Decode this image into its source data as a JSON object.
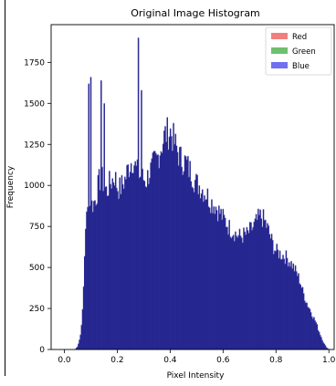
{
  "chart_data": {
    "type": "bar",
    "title": "Original Image Histogram",
    "xlabel": "Pixel Intensity",
    "ylabel": "Frequency",
    "xlim": [
      -0.05,
      1.02
    ],
    "ylim": [
      0,
      1980
    ],
    "x_ticks": [
      "0.0",
      "0.2",
      "0.4",
      "0.6",
      "0.8",
      "1.0"
    ],
    "x_tick_values": [
      0.0,
      0.2,
      0.4,
      0.6,
      0.8,
      1.0
    ],
    "y_ticks": [
      "0",
      "250",
      "500",
      "750",
      "1000",
      "1250",
      "1500",
      "1750"
    ],
    "y_tick_values": [
      0,
      250,
      500,
      750,
      1000,
      1250,
      1500,
      1750
    ],
    "bins": 256,
    "bin_range": [
      0.0,
      1.0
    ],
    "legend": {
      "position": "top-right",
      "entries": [
        {
          "label": "Red",
          "color": "#f08080"
        },
        {
          "label": "Green",
          "color": "#6fbf6f"
        },
        {
          "label": "Blue",
          "color": "#7070f0"
        }
      ]
    },
    "fill_color": "#262690",
    "outline_color": "#8080e0",
    "profile": [
      [
        0.0,
        0
      ],
      [
        0.01,
        0
      ],
      [
        0.02,
        0
      ],
      [
        0.03,
        0
      ],
      [
        0.04,
        0
      ],
      [
        0.05,
        20
      ],
      [
        0.06,
        80
      ],
      [
        0.07,
        260
      ],
      [
        0.075,
        520
      ],
      [
        0.08,
        760
      ],
      [
        0.09,
        870
      ],
      [
        0.1,
        880
      ],
      [
        0.11,
        890
      ],
      [
        0.12,
        930
      ],
      [
        0.13,
        1020
      ],
      [
        0.14,
        1050
      ],
      [
        0.15,
        1000
      ],
      [
        0.16,
        960
      ],
      [
        0.17,
        1010
      ],
      [
        0.18,
        1030
      ],
      [
        0.19,
        1060
      ],
      [
        0.2,
        990
      ],
      [
        0.21,
        980
      ],
      [
        0.22,
        1010
      ],
      [
        0.23,
        1040
      ],
      [
        0.24,
        1100
      ],
      [
        0.25,
        1140
      ],
      [
        0.26,
        1160
      ],
      [
        0.27,
        1100
      ],
      [
        0.28,
        1060
      ],
      [
        0.29,
        1050
      ],
      [
        0.3,
        1040
      ],
      [
        0.31,
        1030
      ],
      [
        0.32,
        1080
      ],
      [
        0.33,
        1100
      ],
      [
        0.34,
        1140
      ],
      [
        0.35,
        1160
      ],
      [
        0.36,
        1210
      ],
      [
        0.37,
        1260
      ],
      [
        0.38,
        1310
      ],
      [
        0.39,
        1320
      ],
      [
        0.4,
        1330
      ],
      [
        0.41,
        1290
      ],
      [
        0.42,
        1240
      ],
      [
        0.43,
        1200
      ],
      [
        0.44,
        1160
      ],
      [
        0.45,
        1150
      ],
      [
        0.46,
        1140
      ],
      [
        0.47,
        1100
      ],
      [
        0.48,
        1080
      ],
      [
        0.49,
        1040
      ],
      [
        0.5,
        1010
      ],
      [
        0.51,
        1000
      ],
      [
        0.52,
        980
      ],
      [
        0.53,
        960
      ],
      [
        0.54,
        940
      ],
      [
        0.55,
        910
      ],
      [
        0.56,
        890
      ],
      [
        0.57,
        880
      ],
      [
        0.58,
        850
      ],
      [
        0.59,
        830
      ],
      [
        0.6,
        800
      ],
      [
        0.61,
        780
      ],
      [
        0.62,
        750
      ],
      [
        0.63,
        730
      ],
      [
        0.64,
        720
      ],
      [
        0.65,
        700
      ],
      [
        0.66,
        690
      ],
      [
        0.67,
        690
      ],
      [
        0.68,
        700
      ],
      [
        0.69,
        700
      ],
      [
        0.7,
        720
      ],
      [
        0.71,
        740
      ],
      [
        0.72,
        760
      ],
      [
        0.73,
        790
      ],
      [
        0.74,
        810
      ],
      [
        0.75,
        800
      ],
      [
        0.76,
        770
      ],
      [
        0.77,
        730
      ],
      [
        0.78,
        680
      ],
      [
        0.79,
        630
      ],
      [
        0.8,
        600
      ],
      [
        0.81,
        590
      ],
      [
        0.82,
        580
      ],
      [
        0.83,
        570
      ],
      [
        0.84,
        560
      ],
      [
        0.85,
        540
      ],
      [
        0.86,
        520
      ],
      [
        0.87,
        490
      ],
      [
        0.88,
        460
      ],
      [
        0.89,
        420
      ],
      [
        0.9,
        360
      ],
      [
        0.91,
        310
      ],
      [
        0.92,
        270
      ],
      [
        0.93,
        240
      ],
      [
        0.94,
        200
      ],
      [
        0.95,
        170
      ],
      [
        0.96,
        120
      ],
      [
        0.97,
        80
      ],
      [
        0.98,
        40
      ],
      [
        0.99,
        15
      ],
      [
        1.0,
        0
      ]
    ],
    "spikes": [
      {
        "x": 0.09,
        "value": 1620
      },
      {
        "x": 0.1,
        "value": 1660
      },
      {
        "x": 0.14,
        "value": 1640
      },
      {
        "x": 0.15,
        "value": 1500
      },
      {
        "x": 0.28,
        "value": 1900
      },
      {
        "x": 0.29,
        "value": 1580
      }
    ]
  }
}
